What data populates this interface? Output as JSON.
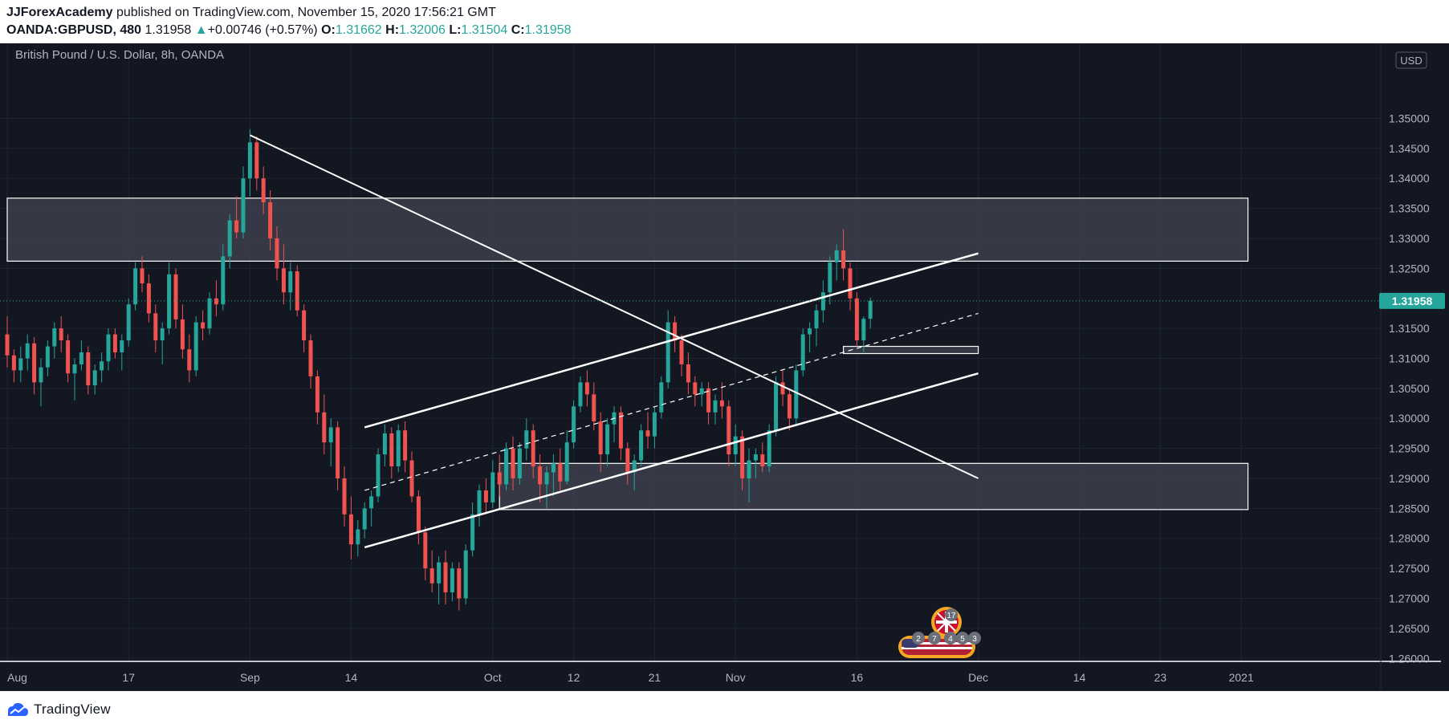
{
  "header": {
    "author": "JJForexAcademy",
    "published": "published on TradingView.com, November 15, 2020 17:56:21 GMT",
    "symbol": "OANDA:GBPUSD, 480",
    "last": "1.31958",
    "arrow": "▲",
    "change": "+0.00746 (+0.57%)",
    "open_label": "O:",
    "open": "1.31662",
    "high_label": "H:",
    "high": "1.32006",
    "low_label": "L:",
    "low": "1.31504",
    "close_label": "C:",
    "close": "1.31958"
  },
  "footer": {
    "brand": "TradingView",
    "logo_icon": "tradingview-logo-icon"
  },
  "colors": {
    "background": "#131722",
    "grid": "#1f2433",
    "up": "#26a69a",
    "down": "#ef5350",
    "price_line": "#26a69a",
    "drawing": "#ffffff",
    "zone_fill": "#434651"
  },
  "chart_data": {
    "type": "candlestick",
    "title": "British Pound / U.S. Dollar, 8h, OANDA",
    "currency": "USD",
    "current_price": 1.31958,
    "current_price_label": "1.31958",
    "ylim": [
      1.2595,
      1.3625
    ],
    "x_range": [
      0,
      215
    ],
    "y_ticks": [
      {
        "value": 1.26,
        "label": "1.26000"
      },
      {
        "value": 1.265,
        "label": "1.26500"
      },
      {
        "value": 1.27,
        "label": "1.27000"
      },
      {
        "value": 1.275,
        "label": "1.27500"
      },
      {
        "value": 1.28,
        "label": "1.28000"
      },
      {
        "value": 1.285,
        "label": "1.28500"
      },
      {
        "value": 1.29,
        "label": "1.29000"
      },
      {
        "value": 1.295,
        "label": "1.29500"
      },
      {
        "value": 1.3,
        "label": "1.30000"
      },
      {
        "value": 1.305,
        "label": "1.30500"
      },
      {
        "value": 1.31,
        "label": "1.31000"
      },
      {
        "value": 1.315,
        "label": "1.31500"
      },
      {
        "value": 1.325,
        "label": "1.32500"
      },
      {
        "value": 1.33,
        "label": "1.33000"
      },
      {
        "value": 1.335,
        "label": "1.33500"
      },
      {
        "value": 1.34,
        "label": "1.34000"
      },
      {
        "value": 1.345,
        "label": "1.34500"
      },
      {
        "value": 1.35,
        "label": "1.35000"
      }
    ],
    "x_ticks": [
      {
        "x": 0,
        "label": "Aug"
      },
      {
        "x": 18,
        "label": "17"
      },
      {
        "x": 36,
        "label": "Sep"
      },
      {
        "x": 51,
        "label": "14"
      },
      {
        "x": 72,
        "label": "Oct"
      },
      {
        "x": 84,
        "label": "12"
      },
      {
        "x": 96,
        "label": "21"
      },
      {
        "x": 108,
        "label": "Nov"
      },
      {
        "x": 126,
        "label": "16"
      },
      {
        "x": 144,
        "label": "Dec"
      },
      {
        "x": 159,
        "label": "14"
      },
      {
        "x": 171,
        "label": "23"
      },
      {
        "x": 183,
        "label": "2021"
      }
    ],
    "candles": [
      [
        1.314,
        1.317,
        1.3085,
        1.3105
      ],
      [
        1.3105,
        1.3115,
        1.306,
        1.308
      ],
      [
        1.308,
        1.312,
        1.306,
        1.31
      ],
      [
        1.31,
        1.314,
        1.308,
        1.3125
      ],
      [
        1.3125,
        1.3135,
        1.304,
        1.306
      ],
      [
        1.306,
        1.31,
        1.302,
        1.3085
      ],
      [
        1.3085,
        1.313,
        1.307,
        1.312
      ],
      [
        1.312,
        1.316,
        1.31,
        1.315
      ],
      [
        1.315,
        1.317,
        1.311,
        1.313
      ],
      [
        1.313,
        1.314,
        1.306,
        1.3075
      ],
      [
        1.3075,
        1.31,
        1.303,
        1.309
      ],
      [
        1.309,
        1.313,
        1.308,
        1.311
      ],
      [
        1.311,
        1.312,
        1.304,
        1.3055
      ],
      [
        1.3055,
        1.309,
        1.304,
        1.308
      ],
      [
        1.308,
        1.311,
        1.306,
        1.3095
      ],
      [
        1.3095,
        1.315,
        1.308,
        1.314
      ],
      [
        1.314,
        1.315,
        1.31,
        1.311
      ],
      [
        1.311,
        1.314,
        1.308,
        1.313
      ],
      [
        1.313,
        1.32,
        1.312,
        1.319
      ],
      [
        1.319,
        1.326,
        1.318,
        1.325
      ],
      [
        1.325,
        1.327,
        1.321,
        1.3225
      ],
      [
        1.3225,
        1.324,
        1.316,
        1.3175
      ],
      [
        1.3175,
        1.319,
        1.311,
        1.313
      ],
      [
        1.313,
        1.316,
        1.309,
        1.315
      ],
      [
        1.315,
        1.326,
        1.314,
        1.324
      ],
      [
        1.324,
        1.325,
        1.315,
        1.3165
      ],
      [
        1.3165,
        1.319,
        1.31,
        1.3115
      ],
      [
        1.3115,
        1.314,
        1.306,
        1.308
      ],
      [
        1.308,
        1.317,
        1.307,
        1.316
      ],
      [
        1.316,
        1.318,
        1.313,
        1.315
      ],
      [
        1.315,
        1.321,
        1.314,
        1.32
      ],
      [
        1.32,
        1.323,
        1.317,
        1.319
      ],
      [
        1.319,
        1.329,
        1.318,
        1.327
      ],
      [
        1.327,
        1.334,
        1.325,
        1.333
      ],
      [
        1.333,
        1.337,
        1.33,
        1.331
      ],
      [
        1.331,
        1.342,
        1.33,
        1.34
      ],
      [
        1.34,
        1.3482,
        1.337,
        1.346
      ],
      [
        1.346,
        1.347,
        1.338,
        1.34
      ],
      [
        1.34,
        1.342,
        1.334,
        1.336
      ],
      [
        1.336,
        1.338,
        1.328,
        1.33
      ],
      [
        1.33,
        1.332,
        1.323,
        1.325
      ],
      [
        1.325,
        1.329,
        1.319,
        1.321
      ],
      [
        1.321,
        1.326,
        1.318,
        1.3245
      ],
      [
        1.3245,
        1.3255,
        1.317,
        1.318
      ],
      [
        1.318,
        1.319,
        1.311,
        1.313
      ],
      [
        1.313,
        1.314,
        1.305,
        1.307
      ],
      [
        1.307,
        1.308,
        1.299,
        1.301
      ],
      [
        1.301,
        1.304,
        1.294,
        1.296
      ],
      [
        1.296,
        1.3,
        1.292,
        1.2985
      ],
      [
        1.2985,
        1.2995,
        1.288,
        1.29
      ],
      [
        1.29,
        1.292,
        1.282,
        1.284
      ],
      [
        1.284,
        1.287,
        1.2765,
        1.279
      ],
      [
        1.279,
        1.283,
        1.277,
        1.2815
      ],
      [
        1.2815,
        1.286,
        1.28,
        1.285
      ],
      [
        1.285,
        1.288,
        1.282,
        1.287
      ],
      [
        1.287,
        1.295,
        1.286,
        1.294
      ],
      [
        1.294,
        1.299,
        1.292,
        1.2975
      ],
      [
        1.2975,
        1.2985,
        1.29,
        1.292
      ],
      [
        1.292,
        1.299,
        1.291,
        1.298
      ],
      [
        1.298,
        1.2995,
        1.291,
        1.293
      ],
      [
        1.293,
        1.2945,
        1.286,
        1.287
      ],
      [
        1.287,
        1.288,
        1.279,
        1.281
      ],
      [
        1.281,
        1.282,
        1.273,
        1.275
      ],
      [
        1.275,
        1.278,
        1.271,
        1.2725
      ],
      [
        1.2725,
        1.277,
        1.269,
        1.276
      ],
      [
        1.276,
        1.278,
        1.269,
        1.271
      ],
      [
        1.271,
        1.276,
        1.2695,
        1.275
      ],
      [
        1.275,
        1.276,
        1.268,
        1.27
      ],
      [
        1.27,
        1.279,
        1.269,
        1.278
      ],
      [
        1.278,
        1.286,
        1.277,
        1.284
      ],
      [
        1.284,
        1.289,
        1.282,
        1.288
      ],
      [
        1.288,
        1.29,
        1.284,
        1.286
      ],
      [
        1.286,
        1.293,
        1.285,
        1.291
      ],
      [
        1.291,
        1.294,
        1.287,
        1.289
      ],
      [
        1.289,
        1.296,
        1.288,
        1.295
      ],
      [
        1.295,
        1.297,
        1.288,
        1.29
      ],
      [
        1.29,
        1.296,
        1.289,
        1.295
      ],
      [
        1.295,
        1.3,
        1.293,
        1.298
      ],
      [
        1.298,
        1.299,
        1.29,
        1.292
      ],
      [
        1.292,
        1.294,
        1.286,
        1.289
      ],
      [
        1.289,
        1.292,
        1.285,
        1.291
      ],
      [
        1.291,
        1.294,
        1.287,
        1.2925
      ],
      [
        1.2925,
        1.295,
        1.288,
        1.2895
      ],
      [
        1.2895,
        1.298,
        1.289,
        1.296
      ],
      [
        1.296,
        1.303,
        1.295,
        1.302
      ],
      [
        1.302,
        1.307,
        1.301,
        1.306
      ],
      [
        1.306,
        1.308,
        1.302,
        1.304
      ],
      [
        1.304,
        1.306,
        1.298,
        1.2995
      ],
      [
        1.2995,
        1.301,
        1.291,
        1.294
      ],
      [
        1.294,
        1.3,
        1.292,
        1.299
      ],
      [
        1.299,
        1.302,
        1.296,
        1.301
      ],
      [
        1.301,
        1.302,
        1.293,
        1.295
      ],
      [
        1.295,
        1.296,
        1.289,
        1.291
      ],
      [
        1.291,
        1.294,
        1.288,
        1.293
      ],
      [
        1.293,
        1.299,
        1.292,
        1.298
      ],
      [
        1.298,
        1.301,
        1.295,
        1.297
      ],
      [
        1.297,
        1.302,
        1.295,
        1.301
      ],
      [
        1.301,
        1.307,
        1.3,
        1.306
      ],
      [
        1.306,
        1.318,
        1.305,
        1.316
      ],
      [
        1.316,
        1.317,
        1.311,
        1.313
      ],
      [
        1.313,
        1.314,
        1.307,
        1.309
      ],
      [
        1.309,
        1.311,
        1.304,
        1.306
      ],
      [
        1.306,
        1.307,
        1.302,
        1.304
      ],
      [
        1.304,
        1.306,
        1.302,
        1.305
      ],
      [
        1.305,
        1.306,
        1.299,
        1.301
      ],
      [
        1.301,
        1.304,
        1.299,
        1.303
      ],
      [
        1.303,
        1.306,
        1.3,
        1.302
      ],
      [
        1.302,
        1.303,
        1.292,
        1.294
      ],
      [
        1.294,
        1.299,
        1.292,
        1.297
      ],
      [
        1.297,
        1.298,
        1.288,
        1.29
      ],
      [
        1.29,
        1.295,
        1.286,
        1.293
      ],
      [
        1.293,
        1.295,
        1.29,
        1.294
      ],
      [
        1.294,
        1.296,
        1.291,
        1.292
      ],
      [
        1.292,
        1.299,
        1.291,
        1.298
      ],
      [
        1.298,
        1.307,
        1.297,
        1.306
      ],
      [
        1.306,
        1.308,
        1.302,
        1.304
      ],
      [
        1.304,
        1.305,
        1.298,
        1.3
      ],
      [
        1.3,
        1.309,
        1.299,
        1.308
      ],
      [
        1.308,
        1.315,
        1.307,
        1.314
      ],
      [
        1.314,
        1.316,
        1.311,
        1.315
      ],
      [
        1.315,
        1.319,
        1.312,
        1.318
      ],
      [
        1.318,
        1.323,
        1.316,
        1.321
      ],
      [
        1.321,
        1.327,
        1.319,
        1.326
      ],
      [
        1.326,
        1.329,
        1.323,
        1.328
      ],
      [
        1.328,
        1.3315,
        1.323,
        1.325
      ],
      [
        1.325,
        1.326,
        1.318,
        1.32
      ],
      [
        1.32,
        1.321,
        1.312,
        1.313
      ],
      [
        1.313,
        1.317,
        1.311,
        1.3166
      ],
      [
        1.3166,
        1.3201,
        1.315,
        1.3196
      ]
    ],
    "drawings": {
      "resistance_zone": {
        "top": 1.3367,
        "bottom": 1.3262,
        "x_end": 184
      },
      "support_zone": {
        "top": 1.2925,
        "bottom": 1.2848,
        "x_start": 73,
        "x_end": 184
      },
      "small_zone": {
        "top": 1.312,
        "bottom": 1.3108,
        "x_start": 124,
        "x_end": 144
      },
      "descending_trendline": {
        "x1": 36,
        "y1": 1.3472,
        "x2": 144,
        "y2": 1.29
      },
      "channel_upper": {
        "x1": 53,
        "y1": 1.2985,
        "x2": 144,
        "y2": 1.3275
      },
      "channel_mid": {
        "x1": 53,
        "y1": 1.288,
        "x2": 144,
        "y2": 1.3175
      },
      "channel_lower": {
        "x1": 53,
        "y1": 1.2785,
        "x2": 144,
        "y2": 1.3075
      }
    },
    "events": {
      "gb_count": "17",
      "us_counts": [
        "2",
        "7",
        "4",
        "5",
        "3"
      ],
      "gb_icon": "gb-flag-icon",
      "us_icon": "us-flag-icon"
    }
  }
}
